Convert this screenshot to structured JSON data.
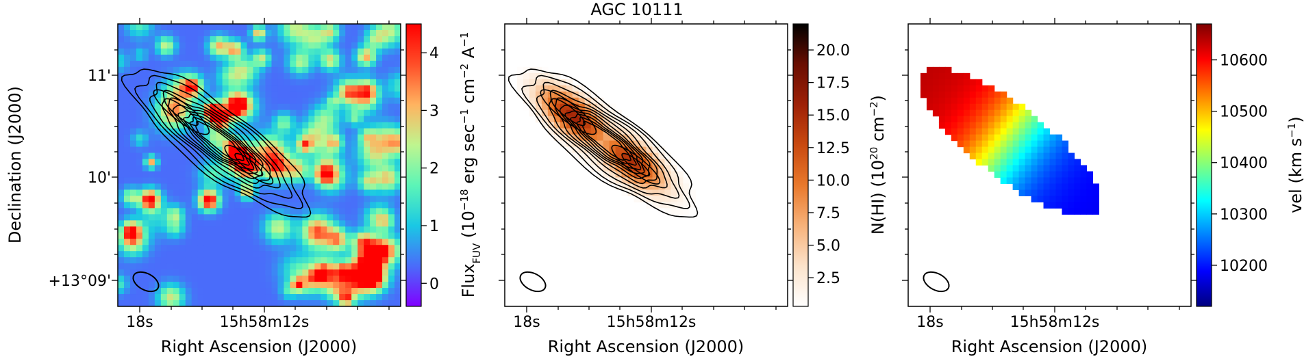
{
  "figure": {
    "title": "AGC 10111"
  },
  "chart_data": [
    {
      "type": "heatmap",
      "panel": "left",
      "description_of_content": "FUV flux image with HI column density contours overlaid",
      "xlabel": "Right Ascension (J2000)",
      "ylabel": "Declination (J2000)",
      "x_tick_labels": [
        "18s",
        "15h58m12s"
      ],
      "y_tick_labels": [
        "+13°09'",
        "10'",
        "11'"
      ],
      "colorbar": {
        "label_main": "Flux",
        "label_sub": "FUV",
        "label_units": "(10",
        "label_exp1": "−18",
        "label_mid1": " erg sec",
        "label_exp2": "−1",
        "label_mid2": " cm",
        "label_exp3": "−2",
        "label_mid3": " A",
        "label_exp4": "−1",
        "range": [
          -0.4,
          4.5
        ],
        "ticks": [
          0,
          1,
          2,
          3,
          4
        ],
        "tick_labels": [
          "0",
          "1",
          "2",
          "3",
          "4"
        ],
        "colormap": "rainbow",
        "colors": [
          "#8000ff",
          "#4a6cfa",
          "#1ac8e4",
          "#5cf5b7",
          "#bff58f",
          "#ffb360",
          "#ff4e28",
          "#ff0000"
        ]
      },
      "background_value": 0.3,
      "contours": "HI column density",
      "has_beam_ellipse": true
    },
    {
      "type": "heatmap",
      "panel": "center",
      "title": "AGC 10111",
      "xlabel": "Right Ascension (J2000)",
      "x_tick_labels": [
        "18s",
        "15h58m12s"
      ],
      "colorbar": {
        "label": "N(HI) (10",
        "label_exp": "20",
        "label_mid": " cm",
        "label_exp2": "−2",
        "label_end": ")",
        "range": [
          0.3,
          22.0
        ],
        "ticks": [
          2.5,
          5.0,
          7.5,
          10.0,
          12.5,
          15.0,
          17.5,
          20.0
        ],
        "tick_labels": [
          "2.5",
          "5.0",
          "7.5",
          "10.0",
          "12.5",
          "15.0",
          "17.5",
          "20.0"
        ],
        "colormap": "gist_heat_r",
        "colors": [
          "#ffffff",
          "#fce3cb",
          "#f7b27a",
          "#e9792c",
          "#c94a10",
          "#9e2107",
          "#6a0e02",
          "#000000"
        ]
      },
      "peak_value": 20.5,
      "contours": "HI column density",
      "has_beam_ellipse": true
    },
    {
      "type": "heatmap",
      "panel": "right",
      "xlabel": "Right Ascension (J2000)",
      "x_tick_labels": [
        "18s",
        "15h58m12s"
      ],
      "colorbar": {
        "label": "vel (km s",
        "label_exp": "−1",
        "label_end": ")",
        "range": [
          10120,
          10670
        ],
        "ticks": [
          10200,
          10300,
          10400,
          10500,
          10600
        ],
        "tick_labels": [
          "10200",
          "10300",
          "10400",
          "10500",
          "10600"
        ],
        "colormap": "jet",
        "colors": [
          "#00007f",
          "#0000ff",
          "#007fff",
          "#00ffff",
          "#7fff7f",
          "#ffff00",
          "#ff7f00",
          "#ff0000",
          "#7f0000"
        ]
      },
      "velocity_range_shown": [
        10180,
        10640
      ],
      "has_beam_ellipse": true
    }
  ]
}
